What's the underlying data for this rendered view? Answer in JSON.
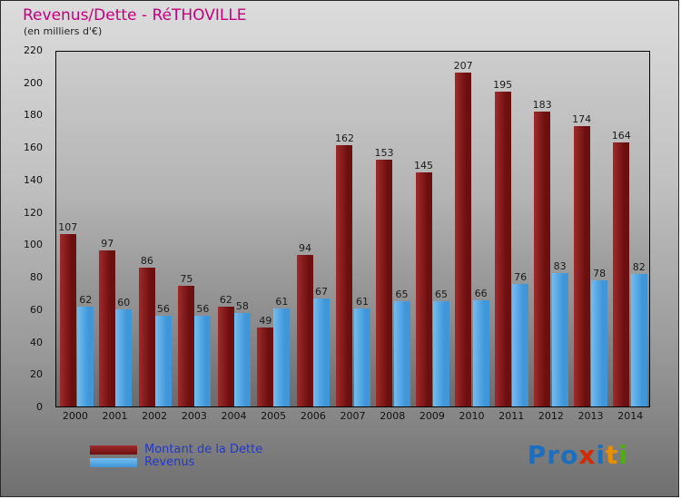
{
  "chart_data": {
    "type": "bar",
    "title": "Revenus/Dette - RéTHOVILLE",
    "subtitle": "(en milliers d'€)",
    "categories": [
      "2000",
      "2001",
      "2002",
      "2003",
      "2004",
      "2005",
      "2006",
      "2007",
      "2008",
      "2009",
      "2010",
      "2011",
      "2012",
      "2013",
      "2014"
    ],
    "series": [
      {
        "name": "Montant de la Dette",
        "color": "#6e0f0f",
        "color_light": "#9e2b2b",
        "values": [
          107,
          97,
          86,
          75,
          62,
          49,
          94,
          162,
          153,
          145,
          207,
          195,
          183,
          174,
          164
        ]
      },
      {
        "name": "Revenus",
        "color": "#3f96d8",
        "color_light": "#74bdf0",
        "values": [
          62,
          60,
          56,
          56,
          58,
          61,
          67,
          61,
          65,
          65,
          66,
          76,
          83,
          78,
          82
        ]
      }
    ],
    "ylim": [
      0,
      220
    ],
    "ytick_step": 20,
    "grid": false,
    "legend_position": "bottom-left"
  },
  "legend": {
    "dette_label": "Montant de la Dette",
    "revenus_label": "Revenus"
  },
  "branding": {
    "logo_text": "Proxiti",
    "logo_letters": [
      {
        "ch": "P",
        "color": "#1a6fc0"
      },
      {
        "ch": "r",
        "color": "#1a6fc0"
      },
      {
        "ch": "o",
        "color": "#1a6fc0"
      },
      {
        "ch": "x",
        "color": "#d42a00"
      },
      {
        "ch": "i",
        "color": "#1a6fc0"
      },
      {
        "ch": "t",
        "color": "#e89000"
      },
      {
        "ch": "i",
        "color": "#4fae12"
      }
    ]
  }
}
